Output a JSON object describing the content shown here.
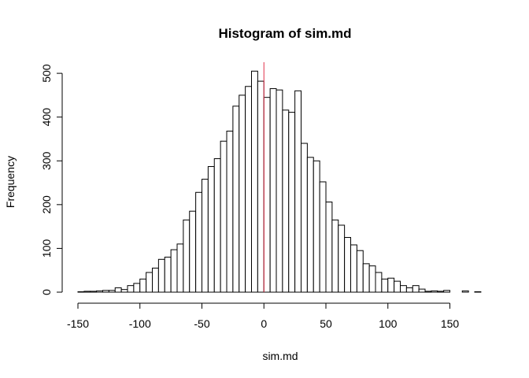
{
  "chart_data": {
    "type": "bar",
    "title": "Histogram of sim.md",
    "xlabel": "sim.md",
    "ylabel": "Frequency",
    "bin_width": 5,
    "bin_starts": [
      -150,
      -145,
      -140,
      -135,
      -130,
      -125,
      -120,
      -115,
      -110,
      -105,
      -100,
      -95,
      -90,
      -85,
      -80,
      -75,
      -70,
      -65,
      -60,
      -55,
      -50,
      -45,
      -40,
      -35,
      -30,
      -25,
      -20,
      -15,
      -10,
      -5,
      0,
      5,
      10,
      15,
      20,
      25,
      30,
      35,
      40,
      45,
      50,
      55,
      60,
      65,
      70,
      75,
      80,
      85,
      90,
      95,
      100,
      105,
      110,
      115,
      120,
      125,
      130,
      135,
      140,
      145,
      150,
      155,
      160,
      165,
      170
    ],
    "values": [
      1,
      2,
      2,
      3,
      4,
      4,
      10,
      6,
      15,
      20,
      30,
      45,
      55,
      75,
      80,
      97,
      110,
      165,
      185,
      228,
      258,
      287,
      305,
      345,
      368,
      425,
      450,
      470,
      505,
      482,
      445,
      465,
      462,
      416,
      411,
      460,
      340,
      308,
      300,
      252,
      206,
      165,
      153,
      125,
      108,
      95,
      65,
      60,
      45,
      30,
      32,
      25,
      15,
      10,
      15,
      7,
      2,
      3,
      2,
      4,
      0,
      0,
      3,
      0,
      1
    ],
    "xlim": [
      -150,
      175
    ],
    "ylim": [
      0,
      525
    ],
    "x_ticks": [
      -150,
      -100,
      -50,
      0,
      50,
      100,
      150
    ],
    "x_tick_labels": [
      "-150",
      "-100",
      "-50",
      "0",
      "50",
      "100",
      "150"
    ],
    "y_ticks": [
      0,
      100,
      200,
      300,
      400,
      500
    ],
    "y_tick_labels": [
      "0",
      "100",
      "200",
      "300",
      "400",
      "500"
    ],
    "vline": {
      "x": 0,
      "color": "#e0304a"
    },
    "grid": false,
    "colors": {
      "bar_fill": "#ffffff",
      "bar_stroke": "#000000"
    }
  }
}
